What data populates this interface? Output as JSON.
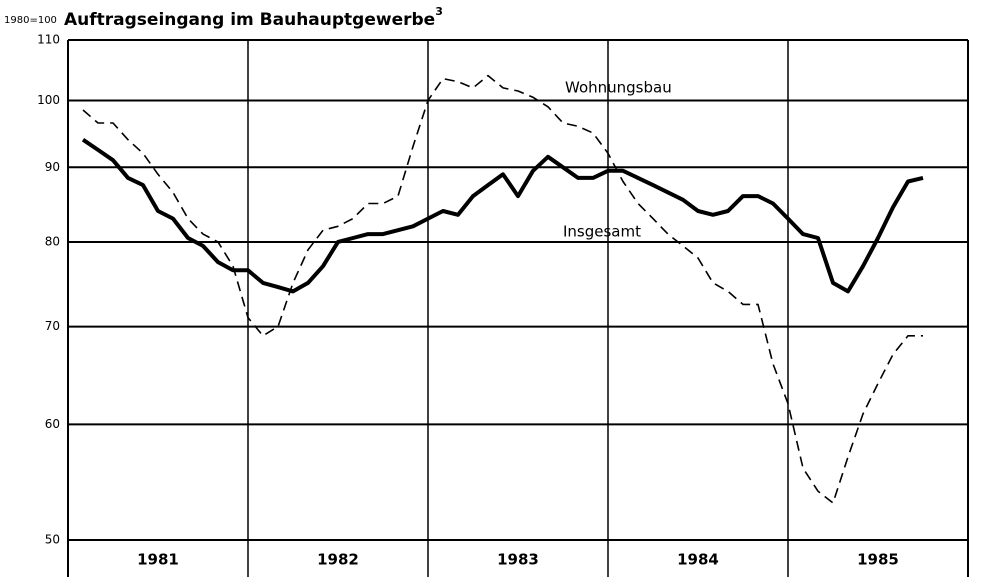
{
  "chart_data": {
    "type": "line",
    "title": "Auftragseingang im Bauhauptgewerbe",
    "title_superscript": "3",
    "y_label": "1980=100",
    "log_scale": true,
    "grid": true,
    "x": [
      1,
      2,
      3,
      4,
      5,
      6,
      7,
      8,
      9,
      10,
      11,
      12,
      13,
      14,
      15,
      16,
      17,
      18,
      19,
      20,
      21,
      22,
      23,
      24,
      25,
      26,
      27,
      28,
      29,
      30,
      31,
      32,
      33,
      34,
      35,
      36,
      37,
      38,
      39,
      40,
      41,
      42,
      43,
      44,
      45,
      46,
      47,
      48,
      49,
      50,
      51,
      52,
      53,
      54,
      55,
      56,
      57
    ],
    "xlim": [
      0,
      60
    ],
    "xticks": [
      {
        "value": 6,
        "label": "1981"
      },
      {
        "value": 18,
        "label": "1982"
      },
      {
        "value": 30,
        "label": "1983"
      },
      {
        "value": 42,
        "label": "1984"
      },
      {
        "value": 54,
        "label": "1985"
      }
    ],
    "ylim": [
      50,
      110
    ],
    "yticks": [
      50,
      60,
      70,
      80,
      90,
      100,
      110
    ],
    "series": [
      {
        "name": "Insgesamt",
        "color": "#000000",
        "style": "solid",
        "values": [
          94,
          92.5,
          91,
          88.5,
          87.5,
          84,
          83,
          80.5,
          79.5,
          77.5,
          76.5,
          76.5,
          75,
          74.5,
          74,
          75,
          77,
          80,
          80.5,
          81,
          81,
          81.5,
          82,
          83,
          84,
          83.5,
          86,
          87.5,
          89,
          86,
          89.5,
          91.5,
          90,
          88.5,
          88.5,
          89.5,
          89.5,
          88.5,
          87.5,
          86.5,
          85.5,
          84,
          83.5,
          84,
          86,
          86,
          85,
          83,
          81,
          80.5,
          75,
          74,
          77,
          80.5,
          84.5,
          88,
          88.5
        ]
      },
      {
        "name": "Wohnungsbau",
        "color": "#000000",
        "style": "dashed",
        "values": [
          98.5,
          96.5,
          96.5,
          94,
          92,
          89,
          86.5,
          83,
          81,
          80,
          77,
          71,
          69,
          70,
          75,
          79,
          81.5,
          82,
          83,
          85,
          85,
          86,
          93,
          100,
          103.5,
          103,
          102,
          104,
          102,
          101.5,
          100.5,
          99,
          96.5,
          96,
          95,
          92,
          88,
          85,
          83,
          81,
          79.5,
          78,
          75,
          74,
          72.5,
          72.5,
          66,
          62,
          56,
          54,
          53,
          57,
          61,
          64,
          67,
          69,
          69
        ]
      }
    ]
  }
}
